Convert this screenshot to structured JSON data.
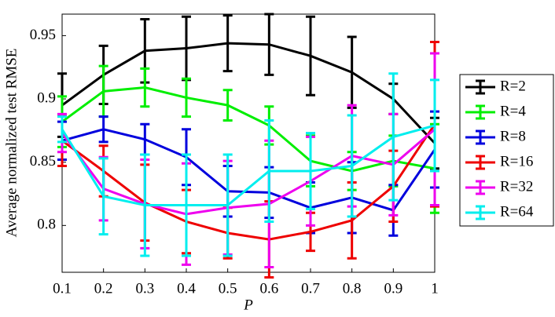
{
  "chart_data": {
    "type": "line-errorbar",
    "xlabel": "P",
    "ylabel": "Average normalized test RMSE",
    "x": [
      0.1,
      0.2,
      0.3,
      0.4,
      0.5,
      0.6,
      0.7,
      0.8,
      0.9,
      1
    ],
    "xlim": [
      0.1,
      1
    ],
    "xticks": [
      0.1,
      0.2,
      0.3,
      0.4,
      0.5,
      0.6,
      0.7,
      0.8,
      0.9,
      1
    ],
    "ylim": [
      0.763,
      0.967
    ],
    "yticks": [
      0.8,
      0.85,
      0.9,
      0.95
    ],
    "series": [
      {
        "name": "R=2",
        "color": "#000000",
        "values": [
          0.895,
          0.919,
          0.938,
          0.94,
          0.944,
          0.943,
          0.934,
          0.921,
          0.9,
          0.865
        ],
        "errors": [
          0.025,
          0.023,
          0.025,
          0.025,
          0.022,
          0.024,
          0.031,
          0.028,
          0.012,
          0.02
        ]
      },
      {
        "name": "R=4",
        "color": "#00ee00",
        "values": [
          0.882,
          0.906,
          0.909,
          0.901,
          0.895,
          0.879,
          0.851,
          0.843,
          0.851,
          0.845
        ],
        "errors": [
          0.02,
          0.02,
          0.015,
          0.015,
          0.012,
          0.015,
          0.02,
          0.015,
          0.02,
          0.035
        ]
      },
      {
        "name": "R=8",
        "color": "#0000dd",
        "values": [
          0.867,
          0.876,
          0.868,
          0.854,
          0.827,
          0.826,
          0.814,
          0.822,
          0.812,
          0.86
        ],
        "errors": [
          0.015,
          0.01,
          0.012,
          0.022,
          0.02,
          0.02,
          0.02,
          0.028,
          0.02,
          0.03
        ]
      },
      {
        "name": "R=16",
        "color": "#ee0000",
        "values": [
          0.867,
          0.843,
          0.818,
          0.803,
          0.794,
          0.789,
          0.795,
          0.804,
          0.831,
          0.88
        ],
        "errors": [
          0.02,
          0.02,
          0.03,
          0.025,
          0.02,
          0.03,
          0.015,
          0.03,
          0.028,
          0.065
        ]
      },
      {
        "name": "R=32",
        "color": "#ee00ee",
        "values": [
          0.873,
          0.829,
          0.817,
          0.809,
          0.814,
          0.817,
          0.835,
          0.855,
          0.848,
          0.876
        ],
        "errors": [
          0.015,
          0.025,
          0.035,
          0.04,
          0.037,
          0.05,
          0.035,
          0.04,
          0.04,
          0.06
        ]
      },
      {
        "name": "R=64",
        "color": "#00eeee",
        "values": [
          0.876,
          0.823,
          0.816,
          0.816,
          0.816,
          0.843,
          0.843,
          0.847,
          0.87,
          0.879
        ],
        "errors": [
          0.01,
          0.03,
          0.04,
          0.04,
          0.04,
          0.04,
          0.03,
          0.04,
          0.05,
          0.036
        ]
      }
    ],
    "legend": "right"
  }
}
